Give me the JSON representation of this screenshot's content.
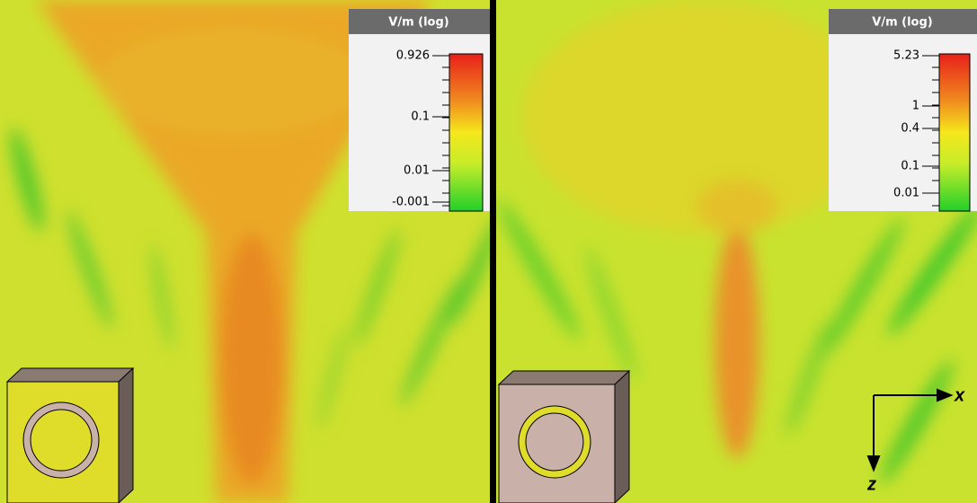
{
  "panels": [
    {
      "legend": {
        "title": "V/m (log)",
        "ticks": [
          "0.926",
          "0.1",
          "0.01",
          "-0.001"
        ]
      }
    },
    {
      "legend": {
        "title": "V/m (log)",
        "ticks": [
          "5.23",
          "1",
          "0.4",
          "0.1",
          "0.01"
        ]
      }
    }
  ],
  "axes": {
    "x": "x",
    "z": "z"
  }
}
